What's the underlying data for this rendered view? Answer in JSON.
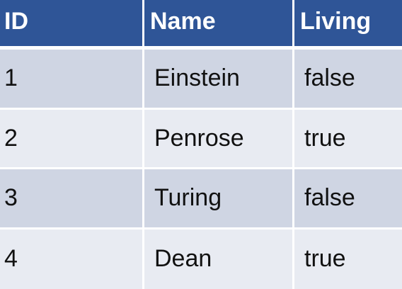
{
  "table": {
    "columns": {
      "id": "ID",
      "name": "Name",
      "living": "Living"
    },
    "rows": [
      {
        "id": "1",
        "name": "Einstein",
        "living": "false"
      },
      {
        "id": "2",
        "name": "Penrose",
        "living": "true"
      },
      {
        "id": "3",
        "name": "Turing",
        "living": "false"
      },
      {
        "id": "4",
        "name": "Dean",
        "living": "true"
      }
    ]
  },
  "colors": {
    "header_bg": "#2f5597",
    "header_text": "#ffffff",
    "row_odd_bg": "#cfd5e3",
    "row_even_bg": "#e8ebf2"
  }
}
